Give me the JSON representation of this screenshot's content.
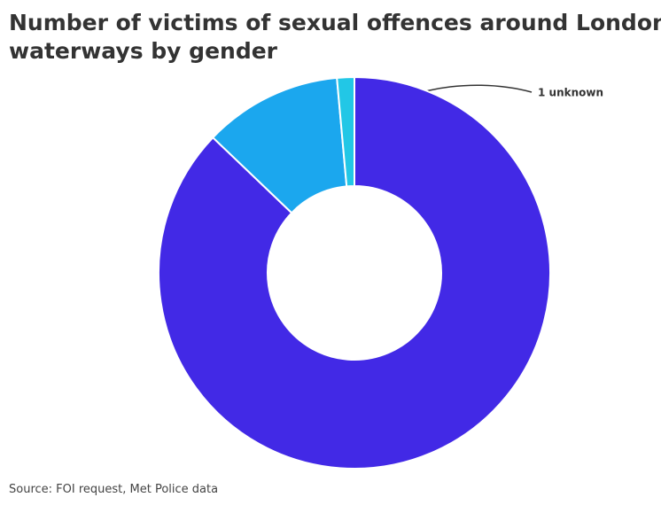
{
  "chart_data": {
    "type": "donut",
    "title": "Number of victims of sexual offences around London waterways by gender",
    "categories": [
      null,
      null,
      null
    ],
    "values": [
      61,
      8,
      1
    ],
    "value_labels": [
      null,
      null,
      "1 unknown"
    ],
    "colors": [
      "#4229e6",
      "#1ba7ee",
      "#22c7e6"
    ],
    "source": "Source: FOI request, Met Police data"
  }
}
